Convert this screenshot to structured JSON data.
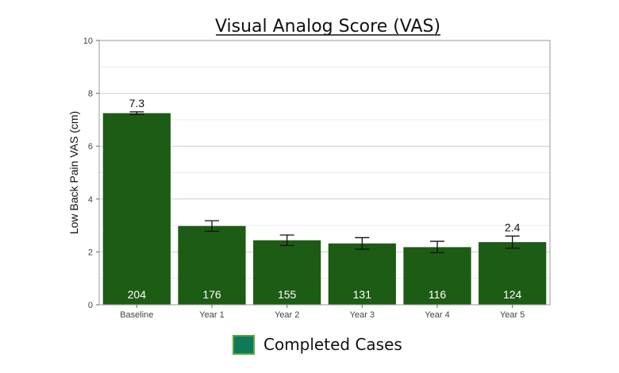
{
  "chart_data": {
    "type": "bar",
    "title": "Visual Analog Score (VAS)",
    "xlabel": "",
    "ylabel": "Low Back Pain VAS (cm)",
    "ylim": [
      0,
      10
    ],
    "yticks": [
      0,
      2,
      4,
      6,
      8,
      10
    ],
    "grid": true,
    "legend_position": "bottom",
    "categories": [
      "Baseline",
      "Year 1",
      "Year 2",
      "Year 3",
      "Year 4",
      "Year 5"
    ],
    "series": [
      {
        "name": "Completed Cases",
        "color": "#1d5c14",
        "legend_color": "#0f7a5a",
        "values": [
          7.25,
          2.98,
          2.44,
          2.32,
          2.18,
          2.37
        ],
        "error_low": [
          7.2,
          2.78,
          2.24,
          2.1,
          1.97,
          2.14
        ],
        "error_high": [
          7.3,
          3.18,
          2.64,
          2.54,
          2.4,
          2.6
        ],
        "n": [
          "204",
          "176",
          "155",
          "131",
          "116",
          "124"
        ],
        "data_labels": [
          "7.3",
          "",
          "",
          "",
          "",
          "2.4"
        ]
      }
    ]
  }
}
